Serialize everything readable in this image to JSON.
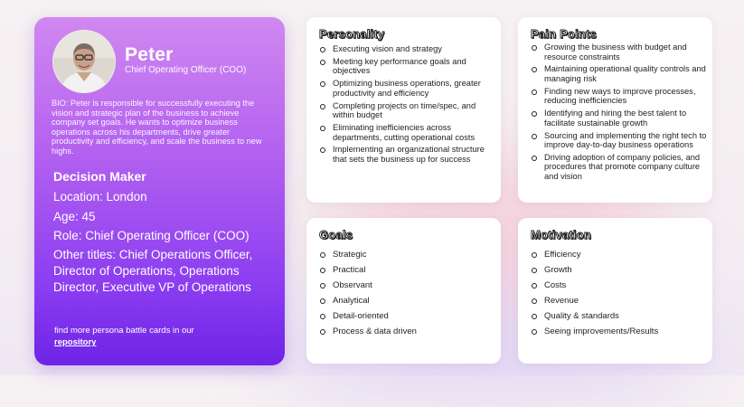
{
  "persona": {
    "name": "Peter",
    "title": "Chief Operating Officer (COO)",
    "avatar_icon": "person-photo",
    "bio": "BIO: Peter is responsible for successfully executing the vision and strategic plan of the business to achieve company set goals. He wants to optimize business operations across his departments, drive greater productivity and efficiency, and scale the business to new highs.",
    "decision_label": "Decision Maker",
    "location": "Location: London",
    "age": "Age: 45",
    "role": "Role: Chief Operating Officer (COO)",
    "other_titles": "Other titles: Chief Operations Officer, Director of Operations, Operations Director, Executive VP of Operations",
    "footer_text": "find more persona battle cards in our",
    "footer_link": "repository"
  },
  "cards": {
    "personality": {
      "title": "Personality",
      "items": [
        "Executing vision and strategy",
        "Meeting key performance goals and objectives",
        "Optimizing business operations, greater productivity and efficiency",
        "Completing projects on time/spec, and within budget",
        "Eliminating inefficiencies across departments, cutting operational costs",
        "Implementing an organizational structure that sets the business up for success"
      ]
    },
    "pain_points": {
      "title": "Pain Points",
      "items": [
        "Growing the business with budget and resource constraints",
        "Maintaining operational quality controls and managing risk",
        "Finding new ways to improve processes, reducing inefficiencies",
        "Identifying and hiring the best talent to facilitate sustainable growth",
        "Sourcing and implementing the right tech to improve day-to-day business operations",
        "Driving adoption of company policies, and procedures that promote company culture and vision"
      ]
    },
    "goals": {
      "title": "Goals",
      "items": [
        "Strategic",
        "Practical",
        "Observant",
        "Analytical",
        "Detail-oriented",
        "Process & data driven"
      ]
    },
    "motivation": {
      "title": "Motivation",
      "items": [
        "Efficiency",
        "Growth",
        "Costs",
        "Revenue",
        "Quality & standards",
        "Seeing improvements/Results"
      ]
    }
  },
  "colors": {
    "card_gradient_top": "#d188f0",
    "card_gradient_bottom": "#6e24e6",
    "heading_outline": "#1a1a1a"
  }
}
